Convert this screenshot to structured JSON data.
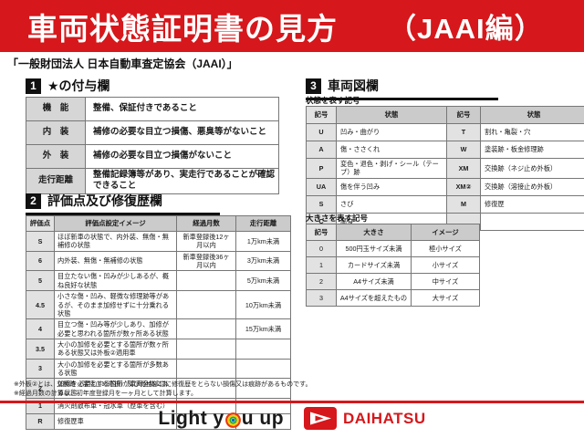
{
  "banner": {
    "title": "車両状態証明書の見方",
    "edition": "（JAAI編）"
  },
  "subtitle": "「一般財団法人 日本自動車査定協会（JAAI）」",
  "section1": {
    "number": "1",
    "title": "★の付与欄",
    "rows": [
      [
        "機　能",
        "整備、保証付きであること"
      ],
      [
        "内　装",
        "補修の必要な目立つ損傷、悪臭等がないこと"
      ],
      [
        "外　装",
        "補修の必要な目立つ損傷がないこと"
      ],
      [
        "走行距離",
        "整備記録簿等があり、実走行であることが確認できること"
      ]
    ]
  },
  "section2": {
    "number": "2",
    "title": "評価点及び修復歴欄",
    "headers": [
      "評価点",
      "評価点設定イメージ",
      "経過月数",
      "走行距離"
    ],
    "rows": [
      [
        "S",
        "ほぼ新車の状態で、内外装、無傷・無補修の状態",
        "新車登録後12ヶ月以内",
        "1万km未満"
      ],
      [
        "6",
        "内外装、無傷・無補修の状態",
        "新車登録後36ヶ月以内",
        "3万km未満"
      ],
      [
        "5",
        "目立たない傷・凹みが少しあるが、概ね良好な状態",
        "",
        "5万km未満"
      ],
      [
        "4.5",
        "小さな傷・凹み、軽微な修理跡等があるが、そのまま加修せずに十分乗れる状態",
        "",
        "10万km未満"
      ],
      [
        "4",
        "目立つ傷・凹み等が少しあり、加修が必要と思われる箇所が数ヶ所ある状態",
        "",
        "15万km未満"
      ],
      [
        "3.5",
        "大小の加修を必要とする箇所が数ヶ所ある状態又は外板②適用車",
        "",
        ""
      ],
      [
        "3",
        "大小の加修を必要とする箇所が多数ある状態",
        "",
        ""
      ],
      [
        "2",
        "加修を必要とする箇所が車両全体にある状態",
        "",
        ""
      ],
      [
        "1",
        "消火剤散布車・冠水車（歴車を含む）",
        "",
        ""
      ],
      [
        "R",
        "修復歴車",
        "",
        ""
      ]
    ]
  },
  "section3": {
    "number": "3",
    "title": "車両図欄",
    "state_table": {
      "label": "状態を表す記号",
      "headers": [
        "記号",
        "状態",
        "記号",
        "状態"
      ],
      "rows": [
        [
          "U",
          "凹み・曲がり",
          "T",
          "割れ・亀裂・穴"
        ],
        [
          "A",
          "傷・ささくれ",
          "W",
          "塗装跡・板金修理跡"
        ],
        [
          "P",
          "変色・退色・剥げ・シール（テープ）跡",
          "XM",
          "交換跡（ネジ止め外板）"
        ],
        [
          "UA",
          "傷を伴う凹み",
          "XM②",
          "交換跡（溶接止め外板）"
        ],
        [
          "S",
          "さび",
          "M",
          "修復歴"
        ],
        [
          "C",
          "腐食",
          "",
          ""
        ]
      ]
    },
    "size_table": {
      "label": "大きさを表す記号",
      "headers": [
        "記号",
        "大きさ",
        "イメージ"
      ],
      "rows": [
        [
          "0",
          "500円玉サイズ未満",
          "極小サイズ"
        ],
        [
          "1",
          "カードサイズ未満",
          "小サイズ"
        ],
        [
          "2",
          "A4サイズ未満",
          "中サイズ"
        ],
        [
          "3",
          "A4サイズを超えたもの",
          "大サイズ"
        ]
      ]
    }
  },
  "footnotes": [
    "※外板②とは、交換跡（溶接止め外板）及び骨格部位に修復歴をとらない損傷又は痕跡があるものです。",
    "※経過月数の計算は、初年度登録月を一ヶ月として計算します。"
  ],
  "footer": {
    "slogan_left": "Light y",
    "slogan_right": "u up",
    "brand": "DAIHATSU"
  },
  "colors": {
    "accent_red": "#d6171b",
    "header_gray": "#cbcbcb",
    "label_gray": "#e2e2e2",
    "ink_black": "#111111"
  }
}
